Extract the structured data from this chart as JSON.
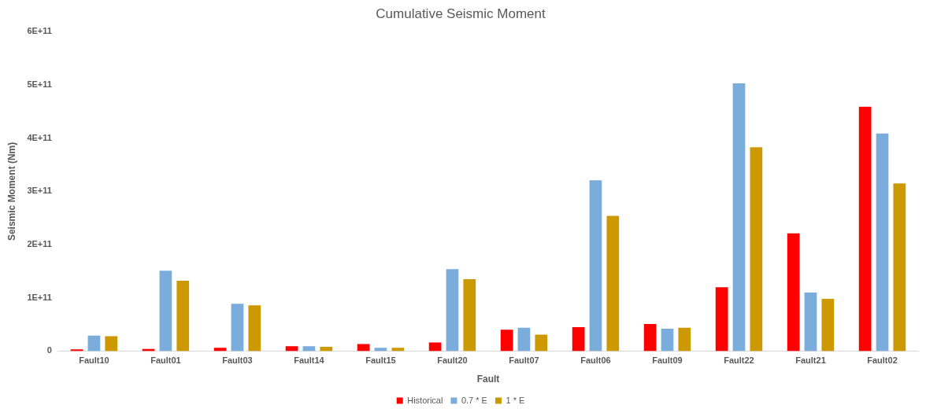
{
  "chart_data": {
    "type": "bar",
    "title": "Cumulative Seismic Moment",
    "xlabel": "Fault",
    "ylabel": "Seismic Moment (Nm)",
    "categories": [
      "Fault10",
      "Fault01",
      "Fault03",
      "Fault14",
      "Fault15",
      "Fault20",
      "Fault07",
      "Fault06",
      "Fault09",
      "Fault22",
      "Fault21",
      "Fault02"
    ],
    "series": [
      {
        "name": "Historical",
        "color": "#ff0000",
        "values": [
          3000000000,
          4000000000,
          6000000000,
          9000000000,
          13000000000,
          16000000000,
          40000000000,
          45000000000,
          51000000000,
          120000000000,
          221000000000,
          459000000000
        ]
      },
      {
        "name": "0.7 * E",
        "color": "#7aacdc",
        "values": [
          29000000000,
          151000000000,
          89000000000,
          9000000000,
          6000000000,
          154000000000,
          44000000000,
          321000000000,
          42000000000,
          503000000000,
          110000000000,
          409000000000
        ]
      },
      {
        "name": "1 * E",
        "color": "#cc9900",
        "values": [
          28000000000,
          132000000000,
          86000000000,
          8000000000,
          6000000000,
          135000000000,
          31000000000,
          254000000000,
          44000000000,
          383000000000,
          98000000000,
          315000000000
        ]
      }
    ],
    "ylim": [
      0,
      600000000000
    ],
    "yticks": [
      0,
      {
        "value": 100000000000,
        "label": "1E+11"
      },
      {
        "value": 200000000000,
        "label": "2E+11"
      },
      {
        "value": 300000000000,
        "label": "3E+11"
      },
      {
        "value": 400000000000,
        "label": "4E+11"
      },
      {
        "value": 500000000000,
        "label": "5E+11"
      },
      {
        "value": 600000000000,
        "label": "6E+11"
      }
    ],
    "grid": false,
    "legend": "bottom"
  }
}
